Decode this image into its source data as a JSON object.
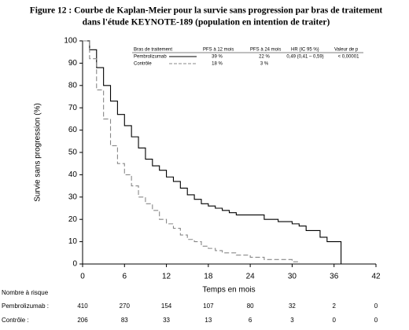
{
  "chart_data": {
    "type": "line",
    "step": true,
    "title": [
      "Figure 12 : Courbe de Kaplan-Meier pour la survie sans progression par bras de traitement",
      "dans l'étude KEYNOTE-189 (population en intention de traiter)"
    ],
    "xlabel": "Temps en mois",
    "ylabel": "Survie sans progression (%)",
    "xlim": [
      0,
      42
    ],
    "ylim": [
      0,
      100
    ],
    "xticks": [
      0,
      6,
      12,
      18,
      24,
      30,
      36,
      42
    ],
    "yticks": [
      0,
      10,
      20,
      30,
      40,
      50,
      60,
      70,
      80,
      90,
      100
    ],
    "x": [
      0,
      1,
      2,
      3,
      4,
      5,
      6,
      7,
      8,
      9,
      10,
      11,
      12,
      13,
      14,
      15,
      16,
      17,
      18,
      19,
      20,
      21,
      22,
      24,
      26,
      28,
      30,
      31,
      32,
      34,
      35,
      36,
      37
    ],
    "series": [
      {
        "name": "Pembrolizumab",
        "color": "#000000",
        "dash": false,
        "values": [
          100,
          96,
          88,
          80,
          73,
          67,
          62,
          57,
          52,
          47,
          44,
          42,
          39,
          37,
          34,
          31,
          29,
          27,
          26,
          25,
          24,
          23,
          22,
          22,
          20,
          19,
          18,
          17,
          15,
          12,
          10,
          10,
          0
        ]
      },
      {
        "name": "Contrôle",
        "color": "#888888",
        "dash": true,
        "values": [
          100,
          92,
          78,
          65,
          53,
          45,
          40,
          35,
          30,
          27,
          24,
          20,
          18,
          16,
          13,
          11,
          10,
          8,
          7,
          6,
          5,
          5,
          4,
          3,
          2,
          2,
          1,
          0,
          null,
          null,
          null,
          null,
          null
        ]
      }
    ],
    "legend_table": {
      "header": [
        "Bras de traitement",
        "PFS à 12 mois",
        "PFS à 24 mois",
        "HR (IC 95 %)",
        "Valeur de p"
      ],
      "rows": [
        [
          "39 %",
          "22 %",
          "0,49 (0,41 – 0,59)",
          "< 0,00001"
        ],
        [
          "18 %",
          "3 %"
        ]
      ]
    },
    "risk_table": {
      "title": "Nombre à risque",
      "rows": [
        {
          "label": "Pembrolizumab :",
          "values": [
            410,
            270,
            154,
            107,
            80,
            32,
            2,
            0
          ]
        },
        {
          "label": "Contrôle :",
          "values": [
            206,
            83,
            33,
            13,
            6,
            3,
            0,
            0
          ]
        }
      ]
    }
  }
}
